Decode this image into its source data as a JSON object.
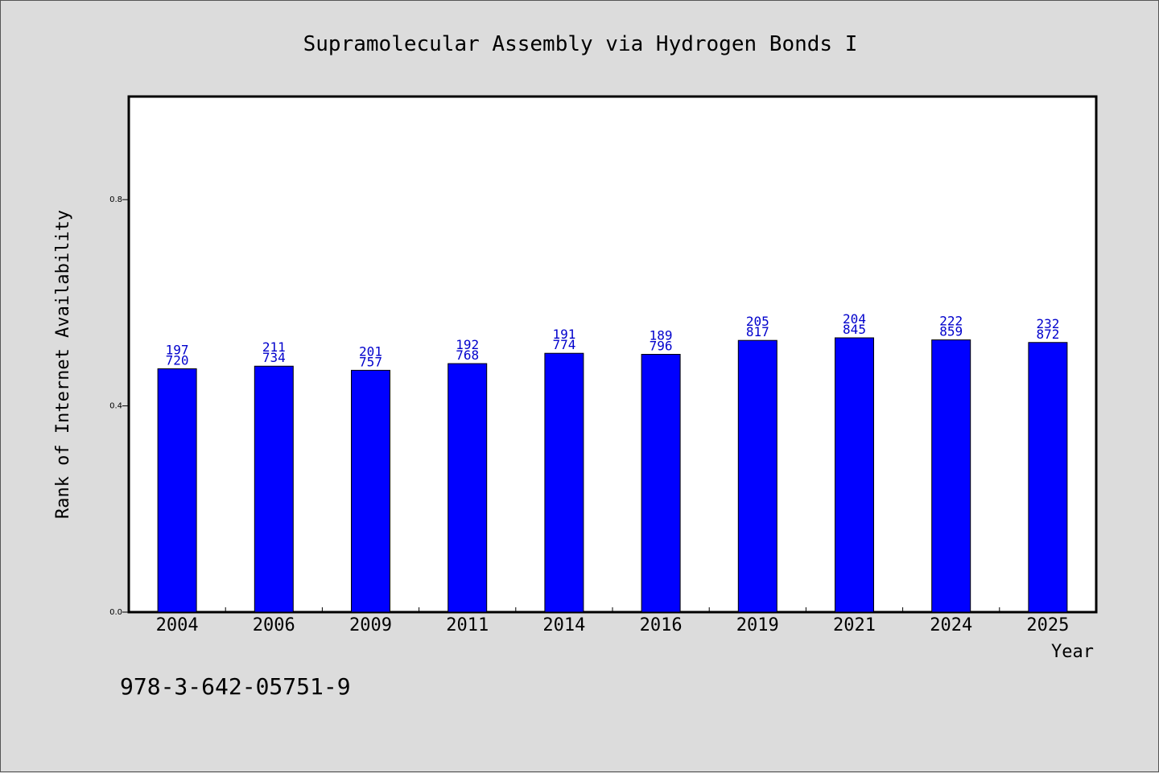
{
  "footer": {
    "isbn": "978-3-642-05751-9"
  },
  "colors": {
    "bar": "#0000ff",
    "bar_stroke": "#000000",
    "data_label": "#0000cc",
    "background": "#dcdcdc",
    "plot_bg": "#ffffff"
  },
  "chart_data": {
    "type": "bar",
    "title": "Supramolecular Assembly via Hydrogen Bonds I",
    "xlabel": "Year",
    "ylabel": "Rank of Internet Availability",
    "ylim": [
      0,
      1.0
    ],
    "yticks": [
      0.0,
      0.4,
      0.8
    ],
    "ytick_labels": [
      "0.0",
      "0.4",
      "0.8"
    ],
    "grid": false,
    "legend": "none",
    "categories": [
      "2004",
      "2006",
      "2009",
      "2011",
      "2014",
      "2016",
      "2019",
      "2021",
      "2024",
      "2025"
    ],
    "values": [
      0.472,
      0.477,
      0.469,
      0.482,
      0.502,
      0.5,
      0.527,
      0.532,
      0.528,
      0.523
    ],
    "labels_top": [
      "197",
      "211",
      "201",
      "192",
      "191",
      "189",
      "205",
      "204",
      "222",
      "232"
    ],
    "labels_bottom": [
      "720",
      "734",
      "757",
      "768",
      "774",
      "796",
      "817",
      "845",
      "859",
      "872"
    ]
  }
}
